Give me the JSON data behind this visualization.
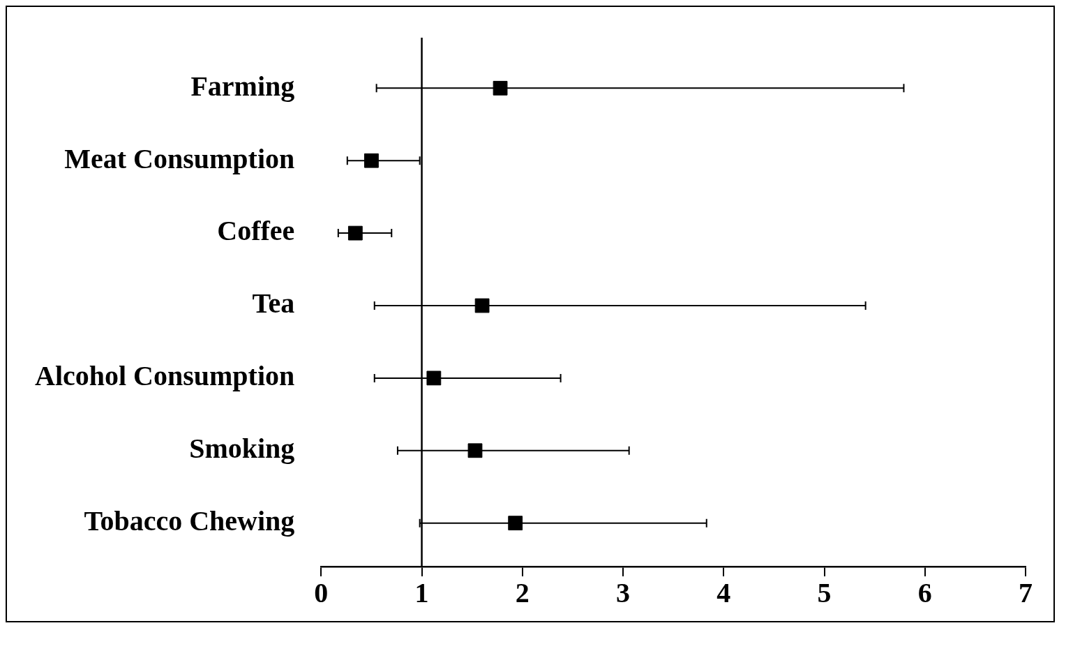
{
  "chart_data": {
    "type": "scatter",
    "orientation": "horizontal",
    "categories": [
      "Farming",
      "Meat Consumption",
      "Coffee",
      "Tea",
      "Alcohol Consumption",
      "Smoking",
      "Tobacco Chewing"
    ],
    "values": [
      1.78,
      0.5,
      0.34,
      1.6,
      1.12,
      1.53,
      1.93
    ],
    "errors": [
      [
        0.55,
        5.79
      ],
      [
        0.26,
        0.98
      ],
      [
        0.17,
        0.7
      ],
      [
        0.53,
        5.41
      ],
      [
        0.53,
        2.38
      ],
      [
        0.76,
        3.06
      ],
      [
        0.98,
        3.83
      ]
    ],
    "color": "#000000",
    "marker": "square",
    "xlim": [
      0,
      7
    ],
    "xticks": [
      0,
      1,
      2,
      3,
      4,
      5,
      6,
      7
    ],
    "ref_lines": [
      {
        "axis": "x",
        "value": 1,
        "color": "#000000"
      }
    ],
    "grid": false,
    "legend": false
  }
}
